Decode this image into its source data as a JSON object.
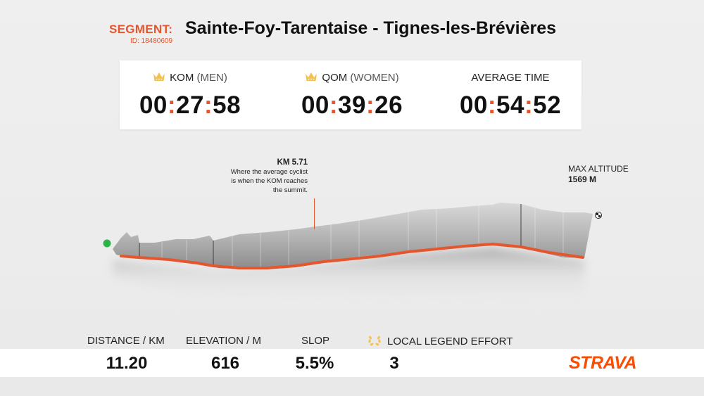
{
  "segment": {
    "label": "SEGMENT:",
    "id_text": "ID: 18480609",
    "title": "Sainte-Foy-Tarentaise - Tignes-les-Brévières"
  },
  "times": {
    "kom": {
      "label": "KOM",
      "sub": "(MEN)",
      "hh": "00",
      "mm": "27",
      "ss": "58"
    },
    "qom": {
      "label": "QOM",
      "sub": "(WOMEN)",
      "hh": "00",
      "mm": "39",
      "ss": "26"
    },
    "avg": {
      "label": "AVERAGE TIME",
      "hh": "00",
      "mm": "54",
      "ss": "52"
    }
  },
  "annotation": {
    "km": "KM 5.71",
    "line1": "Where the average cyclist",
    "line2": "is when the KOM reaches",
    "line3": "the summit."
  },
  "max_altitude": {
    "label": "MAX ALTITUDE",
    "value": "1569 M"
  },
  "stats": {
    "distance": {
      "label": "DISTANCE / KM",
      "value": "11.20"
    },
    "elevation": {
      "label": "ELEVATION / M",
      "value": "616"
    },
    "slope": {
      "label": "SLOP",
      "value": "5.5%"
    },
    "legend": {
      "label": "LOCAL LEGEND EFFORT",
      "value": "3"
    }
  },
  "brand": "STRAVA",
  "colors": {
    "accent": "#e4572e",
    "brand": "#fc4c02",
    "start_marker": "#2db34a",
    "crown": "#f2c14e"
  }
}
